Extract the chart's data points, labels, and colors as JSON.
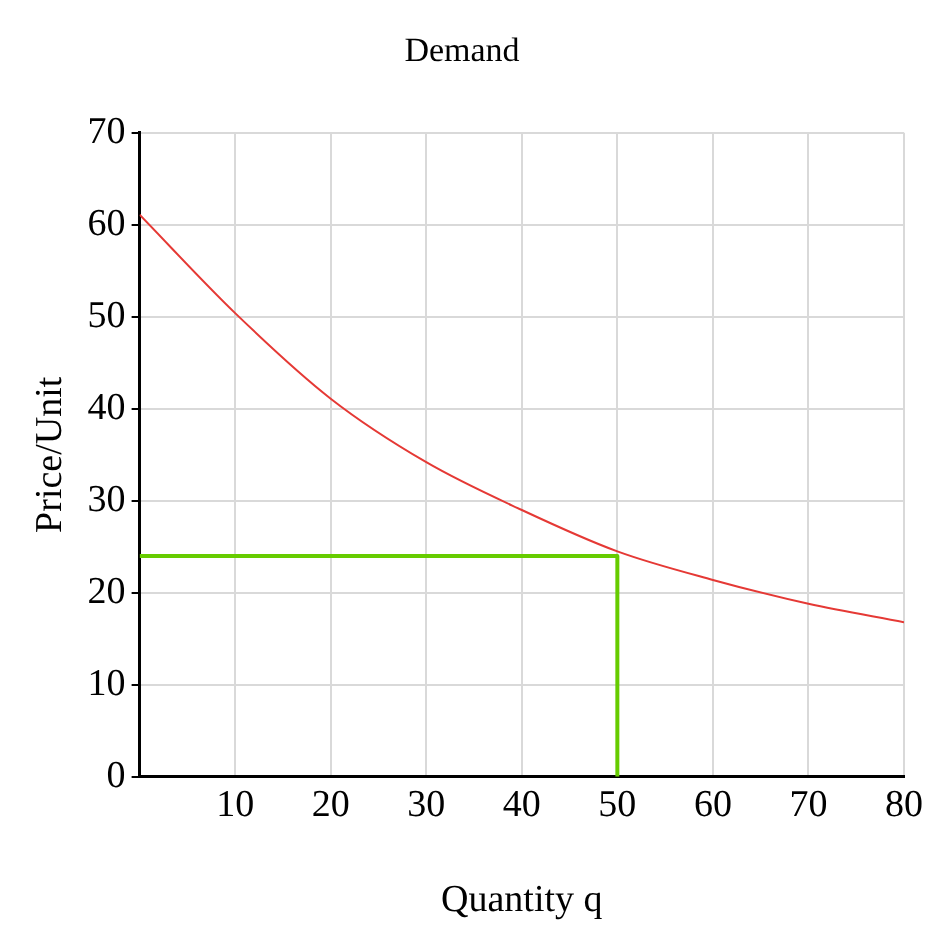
{
  "chart_data": {
    "type": "line",
    "title": "Demand",
    "xlabel": "Quantity q",
    "ylabel": "Price/Unit",
    "series": [
      {
        "color": "#e53935",
        "x": [
          0,
          10,
          20,
          30,
          40,
          50,
          60,
          70,
          80
        ],
        "values": [
          61.1,
          50.4,
          41.1,
          34.2,
          29.0,
          24.5,
          21.4,
          18.8,
          16.8
        ]
      },
      {
        "color": "#66cc00",
        "x": [
          0,
          50,
          50
        ],
        "values": [
          24,
          24,
          0
        ]
      }
    ],
    "xlim": [
      0,
      80
    ],
    "xticks": [
      10,
      20,
      30,
      40,
      50,
      60,
      70,
      80
    ],
    "ylim": [
      0,
      70
    ],
    "yticks": [
      0,
      10,
      20,
      30,
      40,
      50,
      60,
      70
    ],
    "grid": true,
    "legend": false,
    "marker": "none",
    "line_style": "solid"
  }
}
